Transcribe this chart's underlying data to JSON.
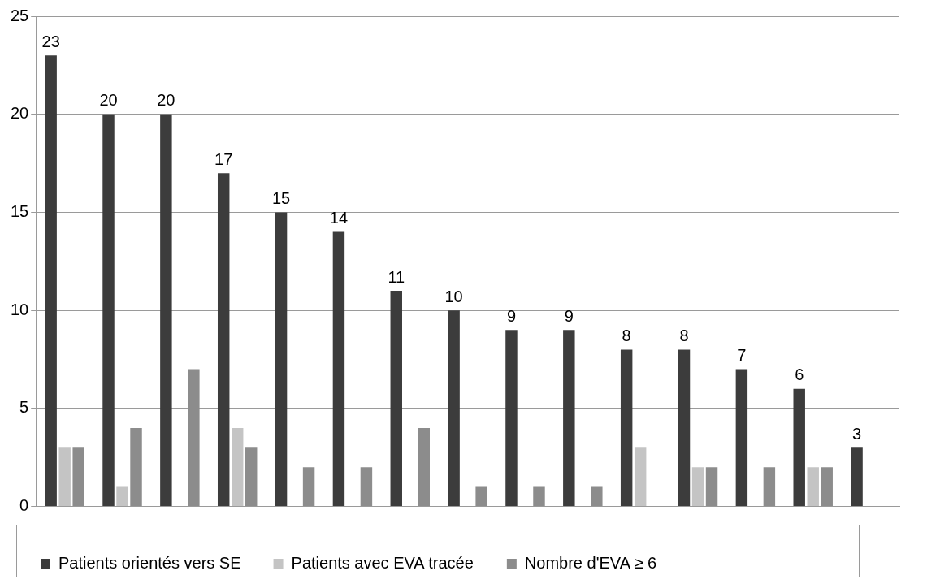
{
  "chart_data": {
    "type": "bar",
    "categories": [
      null,
      null,
      null,
      null,
      null,
      null,
      null,
      null,
      null,
      null,
      null,
      null,
      null,
      null,
      null
    ],
    "series": [
      {
        "name": "Patients orientés vers SE",
        "color": "#3c3c3c",
        "values": [
          23,
          20,
          20,
          17,
          15,
          14,
          11,
          10,
          9,
          9,
          8,
          8,
          7,
          6,
          3
        ],
        "value_labels": [
          "23",
          "20",
          "20",
          "17",
          "15",
          "14",
          "11",
          "10",
          "9",
          "9",
          "8",
          "8",
          "7",
          "6",
          "3"
        ]
      },
      {
        "name": "Patients avec EVA tracée",
        "color": "#c4c4c4",
        "values": [
          3,
          1,
          0,
          4,
          0,
          0,
          0,
          0,
          0,
          0,
          3,
          2,
          0,
          2,
          0
        ]
      },
      {
        "name": "Nombre d'EVA ≥ 6",
        "color": "#8c8c8c",
        "values": [
          3,
          4,
          7,
          3,
          2,
          2,
          4,
          1,
          1,
          1,
          0,
          2,
          2,
          2,
          0
        ]
      }
    ],
    "ylim": [
      0,
      25
    ],
    "yticks": [
      0,
      5,
      10,
      15,
      20,
      25
    ],
    "grid": "y",
    "legend": "bottom"
  }
}
